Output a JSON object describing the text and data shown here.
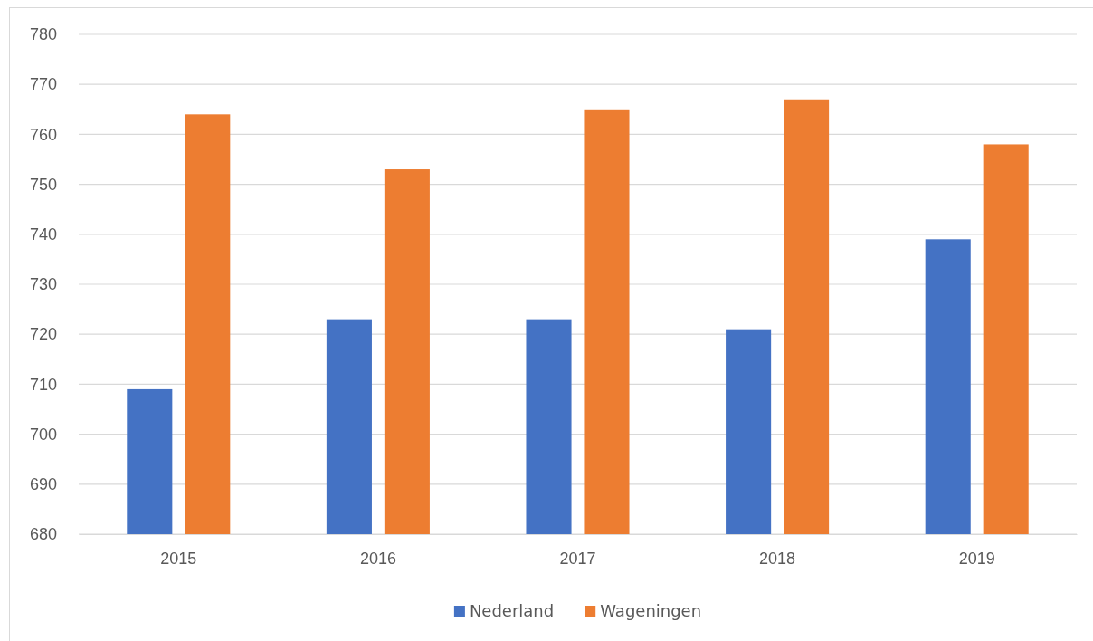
{
  "chart_data": {
    "type": "bar",
    "categories": [
      "2015",
      "2016",
      "2017",
      "2018",
      "2019"
    ],
    "series": [
      {
        "name": "Nederland",
        "color": "#4472c4",
        "values": [
          709,
          723,
          723,
          721,
          739
        ]
      },
      {
        "name": "Wageningen",
        "color": "#ed7d31",
        "values": [
          764,
          753,
          765,
          767,
          758
        ]
      }
    ],
    "ylim": [
      680,
      780
    ],
    "yticks": [
      680,
      690,
      700,
      710,
      720,
      730,
      740,
      750,
      760,
      770,
      780
    ],
    "grid": "y",
    "legend": "bottom"
  }
}
